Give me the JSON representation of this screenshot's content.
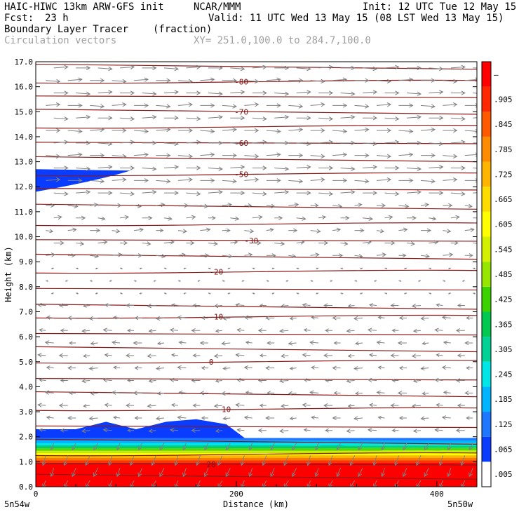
{
  "header": {
    "model": "HAIC-HIWC 13km ARW-GFS init",
    "org": "NCAR/MMM",
    "init": "Init: 12 UTC Tue 12 May 15",
    "fcst_label": "Fcst:",
    "fcst_value": "23 h",
    "valid": "Valid: 11 UTC Wed 13 May 15 (08 LST Wed 13 May 15)",
    "field": "Boundary Layer Tracer",
    "units": "(fraction)",
    "overlay": "Circulation vectors",
    "xy": "XY= 251.0,100.0 to 284.7,100.0"
  },
  "chart_data": {
    "type": "heatmap",
    "xlabel": "Distance (km)",
    "ylabel": "Height (km)",
    "xlim": [
      0,
      440
    ],
    "ylim": [
      0.0,
      17.0
    ],
    "x_ticks": [
      "0",
      "200",
      "400"
    ],
    "x_tick_values": [
      0,
      200,
      400
    ],
    "y_ticks": [
      "0.0",
      "1.0",
      "2.0",
      "3.0",
      "4.0",
      "5.0",
      "6.0",
      "7.0",
      "8.0",
      "9.0",
      "10.0",
      "11.0",
      "12.0",
      "13.0",
      "14.0",
      "15.0",
      "16.0",
      "17.0"
    ],
    "left_endpoint": "5n54w",
    "right_endpoint": "5n50w",
    "colorbar": {
      "labels": [
        ".005",
        ".065",
        ".125",
        ".185",
        ".245",
        ".305",
        ".365",
        ".425",
        ".485",
        ".545",
        ".605",
        ".665",
        ".725",
        ".785",
        ".845",
        ".905",
        "–"
      ],
      "colors": [
        "#ffffff",
        "#0a3cff",
        "#1e78ff",
        "#00b4ff",
        "#00e6e6",
        "#00d296",
        "#00c850",
        "#3cd200",
        "#96e600",
        "#d2f000",
        "#ffff00",
        "#ffdc00",
        "#ffb400",
        "#ff8c00",
        "#ff5a00",
        "#ff2800",
        "#ff0000"
      ]
    },
    "isotherm_labels": [
      {
        "label": "-80",
        "x": 205,
        "y": 16.2
      },
      {
        "label": "-70",
        "x": 205,
        "y": 15.0
      },
      {
        "label": "-60",
        "x": 205,
        "y": 13.75
      },
      {
        "label": "-50",
        "x": 205,
        "y": 12.5
      },
      {
        "label": "-30",
        "x": 215,
        "y": 9.85
      },
      {
        "label": "-20",
        "x": 180,
        "y": 8.6
      },
      {
        "label": "-10",
        "x": 180,
        "y": 6.8
      },
      {
        "label": "0",
        "x": 175,
        "y": 5.0
      },
      {
        "label": "10",
        "x": 190,
        "y": 3.1
      },
      {
        "label": "20",
        "x": 175,
        "y": 0.9
      }
    ],
    "tracer_top_km": {
      "x": [
        0,
        40,
        70,
        100,
        130,
        160,
        190,
        210,
        240,
        270,
        300,
        330,
        360,
        400,
        440
      ],
      "values": [
        2.3,
        2.3,
        2.6,
        2.3,
        2.6,
        2.7,
        2.5,
        1.9,
        1.7,
        1.6,
        1.7,
        1.5,
        1.4,
        1.45,
        1.4
      ]
    },
    "upper_blob": {
      "x": [
        0,
        70
      ],
      "y": [
        11.8,
        12.7
      ]
    }
  }
}
